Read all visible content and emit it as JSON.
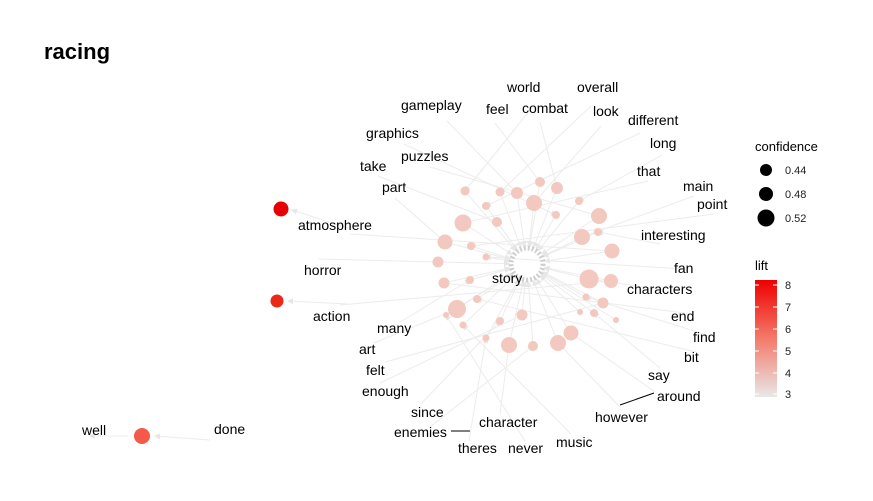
{
  "title": "racing",
  "center_label": "story",
  "words": [
    "world",
    "overall",
    "gameplay",
    "feel",
    "combat",
    "look",
    "different",
    "graphics",
    "long",
    "puzzles",
    "take",
    "that",
    "main",
    "part",
    "point",
    "atmosphere",
    "interesting",
    "horror",
    "fan",
    "characters",
    "action",
    "end",
    "many",
    "find",
    "art",
    "bit",
    "felt",
    "say",
    "enough",
    "around",
    "since",
    "however",
    "character",
    "enemies",
    "music",
    "theres",
    "never",
    "well",
    "done"
  ],
  "legend": {
    "confidence_title": "confidence",
    "confidence_values": [
      "0.44",
      "0.48",
      "0.52"
    ],
    "lift_title": "lift",
    "lift_ticks": [
      "8",
      "7",
      "6",
      "5",
      "4",
      "3"
    ],
    "lift_colors": [
      "#ee0000",
      "#e8e8e8"
    ]
  }
}
